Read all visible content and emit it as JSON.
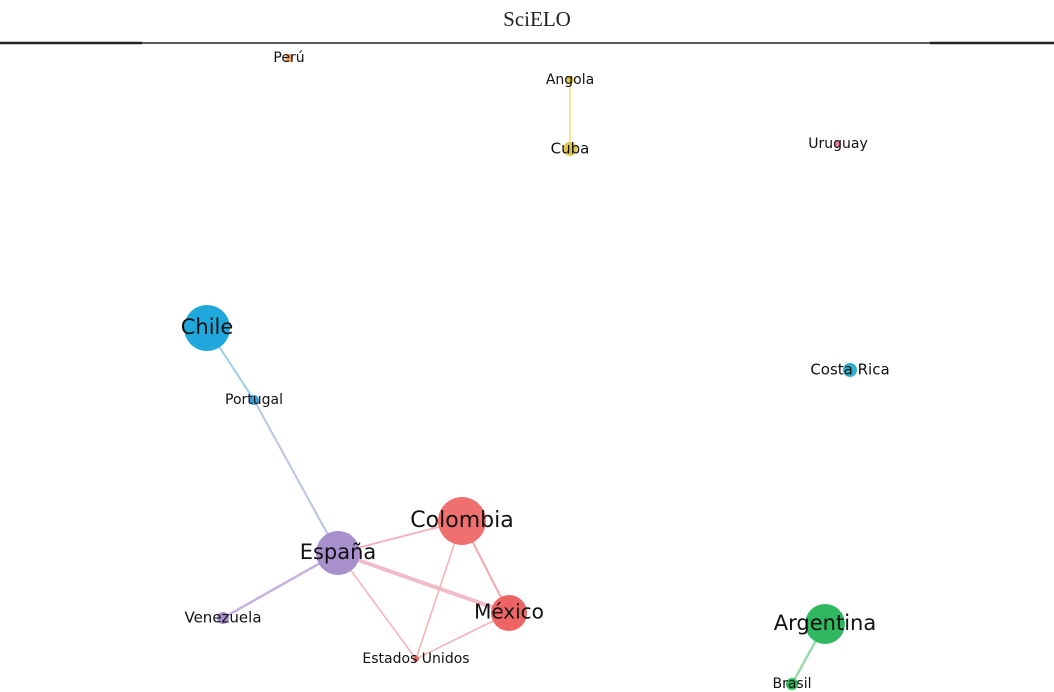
{
  "header": {
    "title": "SciELO"
  },
  "nodes": [
    {
      "label": "Perú"
    },
    {
      "label": "Angola"
    },
    {
      "label": "Cuba"
    },
    {
      "label": "Uruguay"
    },
    {
      "label": "Chile"
    },
    {
      "label": "Portugal"
    },
    {
      "label": "Costa Rica"
    },
    {
      "label": "Colombia"
    },
    {
      "label": "España"
    },
    {
      "label": "México"
    },
    {
      "label": "Venezuela"
    },
    {
      "label": "Estados Unidos"
    },
    {
      "label": "Argentina"
    },
    {
      "label": "Brasil"
    }
  ]
}
